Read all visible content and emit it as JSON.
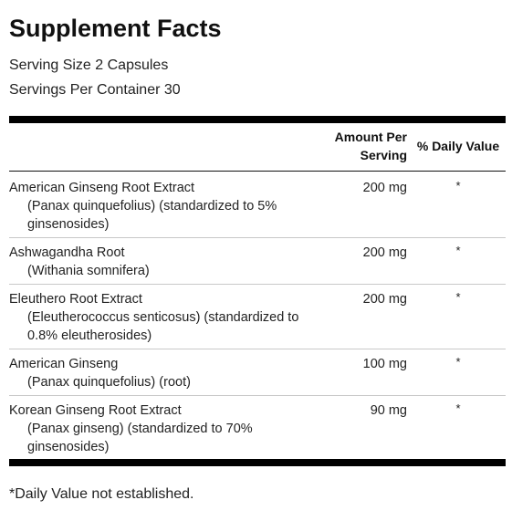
{
  "title": "Supplement Facts",
  "serving_size": "Serving Size 2 Capsules",
  "servings_per_container": "Servings Per Container 30",
  "headers": {
    "amount_line1": "Amount Per",
    "amount_line2": "Serving",
    "daily_value": "% Daily Value"
  },
  "rows": [
    {
      "name": "American Ginseng Root Extract",
      "sub": "(Panax quinquefolius) (standardized to 5% ginsenosides)",
      "amount": "200 mg",
      "dv": "*"
    },
    {
      "name": "Ashwagandha Root",
      "sub": "(Withania somnifera)",
      "amount": "200 mg",
      "dv": "*"
    },
    {
      "name": "Eleuthero Root Extract",
      "sub": "(Eleutherococcus senticosus) (standardized to 0.8% eleutherosides)",
      "amount": "200 mg",
      "dv": "*"
    },
    {
      "name": "American Ginseng",
      "sub": "(Panax quinquefolius) (root)",
      "amount": "100 mg",
      "dv": "*"
    },
    {
      "name": "Korean Ginseng Root Extract",
      "sub": "(Panax ginseng) (standardized to 70% ginsenosides)",
      "amount": "90 mg",
      "dv": "*"
    }
  ],
  "footnote": "*Daily Value not established."
}
